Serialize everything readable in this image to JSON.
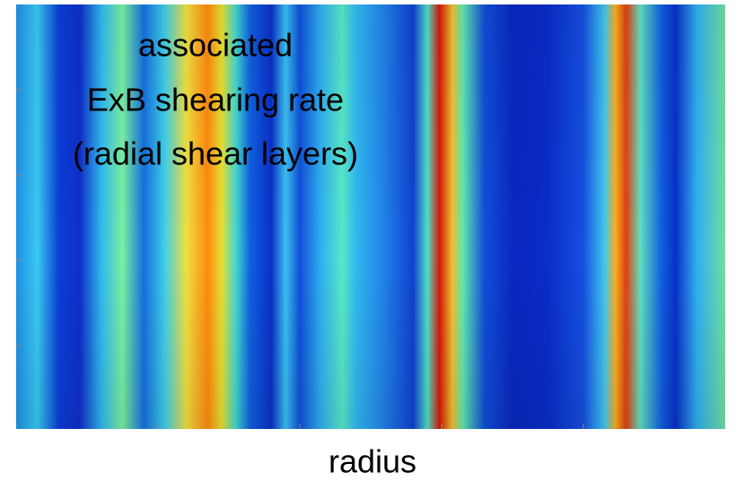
{
  "annotation": {
    "lines": [
      "associated",
      "ExB shearing rate",
      "(radial shear layers)"
    ]
  },
  "x_axis": {
    "label": "radius"
  }
}
